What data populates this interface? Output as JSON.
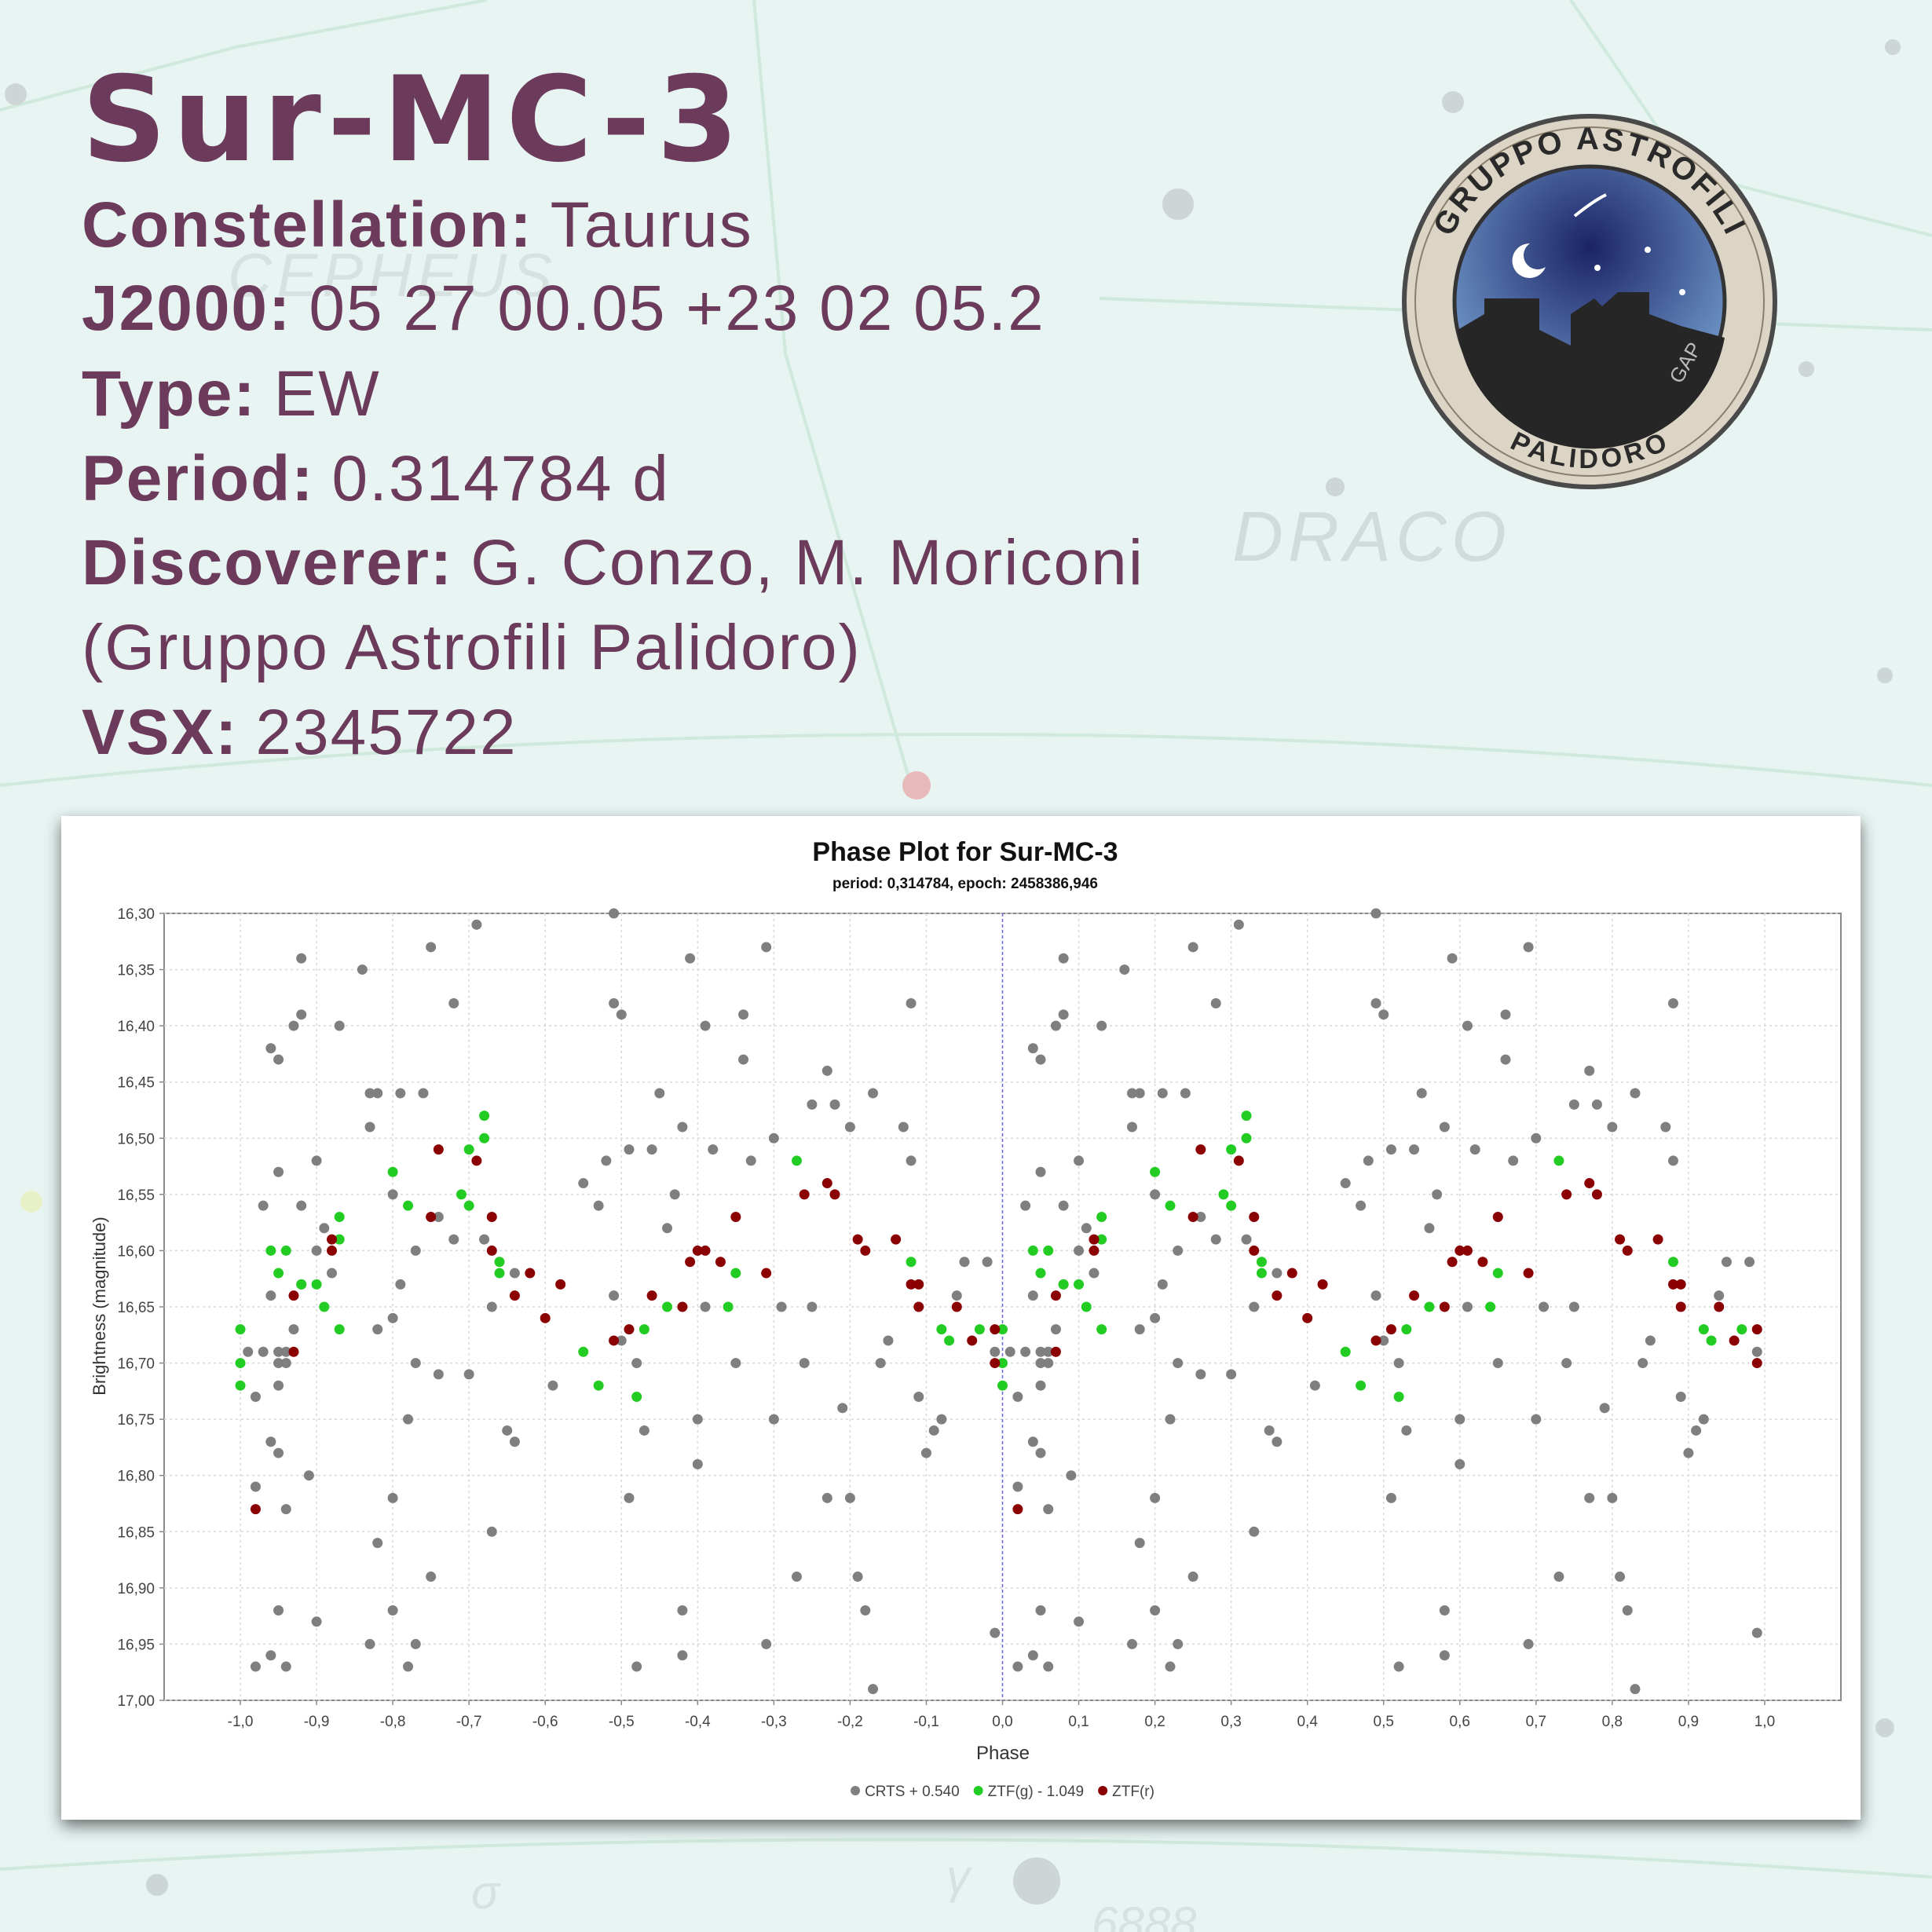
{
  "title": "Sur-MC-3",
  "info": [
    {
      "label": "Constellation:",
      "value": "Taurus"
    },
    {
      "label": "J2000:",
      "value": "05 27 00.05 +23 02 05.2"
    },
    {
      "label": "Type:",
      "value": "EW"
    },
    {
      "label": "Period:",
      "value": "0.314784 d"
    },
    {
      "label": "Discoverer:",
      "value": "G. Conzo, M. Moriconi",
      "continuation": "(Gruppo Astrofili Palidoro)"
    },
    {
      "label": "VSX:",
      "value": "2345722"
    }
  ],
  "logo": {
    "top": "GRUPPO ASTROFILI",
    "bottom": "PALIDORO",
    "monogram": "GAP"
  },
  "background_labels": [
    "CEPHEUS",
    "DRACO",
    "σ",
    "γ",
    "6888"
  ],
  "chart_data": {
    "type": "scatter",
    "title": "Phase Plot for Sur-MC-3",
    "subtitle": "period: 0,314784, epoch: 2458386,946",
    "x_label": "Phase",
    "y_label": "Brightness (magnitude)",
    "xlim": [
      -1.1,
      1.1
    ],
    "ylim": [
      16.3,
      17.0
    ],
    "y_inverted": true,
    "grid": true,
    "legend": "bottom",
    "xticks": [
      {
        "value": -1.0,
        "label": "-1,0"
      },
      {
        "value": -0.9,
        "label": "-0,9"
      },
      {
        "value": -0.8,
        "label": "-0,8"
      },
      {
        "value": -0.7,
        "label": "-0,7"
      },
      {
        "value": -0.6,
        "label": "-0,6"
      },
      {
        "value": -0.5,
        "label": "-0,5"
      },
      {
        "value": -0.4,
        "label": "-0,4"
      },
      {
        "value": -0.3,
        "label": "-0,3"
      },
      {
        "value": -0.2,
        "label": "-0,2"
      },
      {
        "value": -0.1,
        "label": "-0,1"
      },
      {
        "value": 0,
        "label": "0,0"
      },
      {
        "value": 0.1,
        "label": "0,1"
      },
      {
        "value": 0.2,
        "label": "0,2"
      },
      {
        "value": 0.3,
        "label": "0,3"
      },
      {
        "value": 0.4,
        "label": "0,4"
      },
      {
        "value": 0.5,
        "label": "0,5"
      },
      {
        "value": 0.6,
        "label": "0,6"
      },
      {
        "value": 0.7,
        "label": "0,7"
      },
      {
        "value": 0.8,
        "label": "0,8"
      },
      {
        "value": 0.9,
        "label": "0,9"
      },
      {
        "value": 1.0,
        "label": "1,0"
      }
    ],
    "yticks": [
      {
        "value": 16.3,
        "label": "16,30"
      },
      {
        "value": 16.35,
        "label": "16,35"
      },
      {
        "value": 16.4,
        "label": "16,40"
      },
      {
        "value": 16.45,
        "label": "16,45"
      },
      {
        "value": 16.5,
        "label": "16,50"
      },
      {
        "value": 16.55,
        "label": "16,55"
      },
      {
        "value": 16.6,
        "label": "16,60"
      },
      {
        "value": 16.65,
        "label": "16,65"
      },
      {
        "value": 16.7,
        "label": "16,70"
      },
      {
        "value": 16.75,
        "label": "16,75"
      },
      {
        "value": 16.8,
        "label": "16,80"
      },
      {
        "value": 16.85,
        "label": "16,85"
      },
      {
        "value": 16.9,
        "label": "16,90"
      },
      {
        "value": 16.95,
        "label": "16,95"
      },
      {
        "value": 17.0,
        "label": "17,00"
      }
    ],
    "series": [
      {
        "name": "CRTS + 0.540",
        "color": "#7f7f7f",
        "x": [
          -0.98,
          -0.98,
          -0.99,
          -0.97,
          -0.95,
          -0.94,
          -0.95,
          -0.94,
          -0.98,
          -0.97,
          -0.96,
          -0.96,
          -0.95,
          -0.95,
          -0.95,
          -0.96,
          -0.95,
          -0.94,
          -0.95,
          -0.96,
          -0.94,
          -0.92,
          -0.92,
          -0.93,
          -0.92,
          -0.93,
          -0.92,
          -0.91,
          -0.9,
          -0.9,
          -0.9,
          -0.89,
          -0.87,
          -0.88,
          -0.84,
          -0.83,
          -0.83,
          -0.83,
          -0.82,
          -0.82,
          -0.82,
          -0.8,
          -0.8,
          -0.79,
          -0.8,
          -0.79,
          -0.8,
          -0.78,
          -0.78,
          -0.77,
          -0.77,
          -0.77,
          -0.75,
          -0.76,
          -0.75,
          -0.74,
          -0.74,
          -0.72,
          -0.72,
          -0.7,
          -0.69,
          -0.68,
          -0.67,
          -0.67,
          -0.65,
          -0.64,
          -0.64,
          -0.59,
          -0.55,
          -0.53,
          -0.52,
          -0.51,
          -0.51,
          -0.5,
          -0.51,
          -0.5,
          -0.49,
          -0.48,
          -0.49,
          -0.48,
          -0.47,
          -0.45,
          -0.46,
          -0.44,
          -0.43,
          -0.42,
          -0.42,
          -0.42,
          -0.41,
          -0.4,
          -0.4,
          -0.39,
          -0.39,
          -0.38,
          -0.35,
          -0.34,
          -0.34,
          -0.33,
          -0.31,
          -0.31,
          -0.3,
          -0.3,
          -0.29,
          -0.27,
          -0.26,
          -0.25,
          -0.25,
          -0.23,
          -0.23,
          -0.22,
          -0.21,
          -0.2,
          -0.2,
          -0.19,
          -0.18,
          -0.17,
          -0.17,
          -0.16,
          -0.15,
          -0.13,
          -0.12,
          -0.12,
          -0.11,
          -0.1,
          -0.09,
          -0.08,
          -0.06,
          -0.05,
          -0.02,
          -0.01,
          -0.01,
          0.02,
          0.02,
          0.01,
          0.03,
          0.05,
          0.06,
          0.05,
          0.06,
          0.02,
          0.03,
          0.04,
          0.04,
          0.05,
          0.05,
          0.05,
          0.04,
          0.05,
          0.06,
          0.05,
          0.04,
          0.06,
          0.08,
          0.08,
          0.07,
          0.08,
          0.07,
          0.08,
          0.09,
          0.1,
          0.1,
          0.1,
          0.11,
          0.13,
          0.12,
          0.16,
          0.17,
          0.17,
          0.17,
          0.18,
          0.18,
          0.18,
          0.2,
          0.2,
          0.21,
          0.2,
          0.21,
          0.2,
          0.22,
          0.22,
          0.23,
          0.23,
          0.23,
          0.25,
          0.24,
          0.25,
          0.26,
          0.26,
          0.28,
          0.28,
          0.3,
          0.31,
          0.32,
          0.33,
          0.33,
          0.35,
          0.36,
          0.36,
          0.41,
          0.45,
          0.47,
          0.48,
          0.49,
          0.49,
          0.5,
          0.49,
          0.5,
          0.51,
          0.52,
          0.51,
          0.52,
          0.53,
          0.55,
          0.54,
          0.56,
          0.57,
          0.58,
          0.58,
          0.58,
          0.59,
          0.6,
          0.6,
          0.61,
          0.61,
          0.62,
          0.65,
          0.66,
          0.66,
          0.67,
          0.69,
          0.69,
          0.7,
          0.7,
          0.71,
          0.73,
          0.74,
          0.75,
          0.75,
          0.77,
          0.77,
          0.78,
          0.79,
          0.8,
          0.8,
          0.81,
          0.82,
          0.83,
          0.83,
          0.84,
          0.85,
          0.87,
          0.88,
          0.88,
          0.89,
          0.9,
          0.91,
          0.92,
          0.94,
          0.95,
          0.98,
          0.99,
          0.99
        ],
        "values": [
          16.81,
          16.97,
          16.69,
          16.69,
          16.69,
          16.69,
          16.7,
          16.7,
          16.73,
          16.56,
          16.64,
          16.42,
          16.43,
          16.53,
          16.72,
          16.77,
          16.78,
          16.83,
          16.92,
          16.96,
          16.97,
          16.34,
          16.39,
          16.4,
          16.56,
          16.67,
          16.63,
          16.8,
          16.93,
          16.52,
          16.6,
          16.58,
          16.4,
          16.62,
          16.35,
          16.95,
          16.49,
          16.46,
          16.46,
          16.67,
          16.86,
          16.82,
          16.92,
          16.46,
          16.55,
          16.63,
          16.66,
          16.97,
          16.75,
          16.95,
          16.7,
          16.6,
          16.33,
          16.46,
          16.89,
          16.71,
          16.57,
          16.38,
          16.59,
          16.71,
          16.31,
          16.59,
          16.65,
          16.85,
          16.76,
          16.77,
          16.62,
          16.72,
          16.54,
          16.56,
          16.52,
          16.3,
          16.38,
          16.39,
          16.64,
          16.68,
          16.82,
          16.97,
          16.51,
          16.7,
          16.76,
          16.46,
          16.51,
          16.58,
          16.55,
          16.49,
          16.92,
          16.96,
          16.34,
          16.75,
          16.79,
          16.65,
          16.4,
          16.51,
          16.7,
          16.39,
          16.43,
          16.52,
          16.33,
          16.95,
          16.75,
          16.5,
          16.65,
          16.89,
          16.7,
          16.47,
          16.65,
          16.82,
          16.44,
          16.47,
          16.74,
          16.82,
          16.49,
          16.89,
          16.92,
          16.99,
          16.46,
          16.7,
          16.68,
          16.49,
          16.52,
          16.38,
          16.73,
          16.78,
          16.76,
          16.75,
          16.64,
          16.61,
          16.61,
          16.94,
          16.69,
          16.81,
          16.97,
          16.69,
          16.69,
          16.69,
          16.69,
          16.7,
          16.7,
          16.73,
          16.56,
          16.64,
          16.42,
          16.43,
          16.53,
          16.72,
          16.77,
          16.78,
          16.83,
          16.92,
          16.96,
          16.97,
          16.34,
          16.39,
          16.4,
          16.56,
          16.67,
          16.63,
          16.8,
          16.93,
          16.52,
          16.6,
          16.58,
          16.4,
          16.62,
          16.35,
          16.95,
          16.49,
          16.46,
          16.46,
          16.67,
          16.86,
          16.82,
          16.92,
          16.46,
          16.55,
          16.63,
          16.66,
          16.97,
          16.75,
          16.95,
          16.7,
          16.6,
          16.33,
          16.46,
          16.89,
          16.71,
          16.57,
          16.38,
          16.59,
          16.71,
          16.31,
          16.59,
          16.65,
          16.85,
          16.76,
          16.77,
          16.62,
          16.72,
          16.54,
          16.56,
          16.52,
          16.3,
          16.38,
          16.39,
          16.64,
          16.68,
          16.82,
          16.97,
          16.51,
          16.7,
          16.76,
          16.46,
          16.51,
          16.58,
          16.55,
          16.49,
          16.92,
          16.96,
          16.34,
          16.75,
          16.79,
          16.65,
          16.4,
          16.51,
          16.7,
          16.39,
          16.43,
          16.52,
          16.33,
          16.95,
          16.75,
          16.5,
          16.65,
          16.89,
          16.7,
          16.47,
          16.65,
          16.82,
          16.44,
          16.47,
          16.74,
          16.82,
          16.49,
          16.89,
          16.92,
          16.99,
          16.46,
          16.7,
          16.68,
          16.49,
          16.52,
          16.38,
          16.73,
          16.78,
          16.76,
          16.75,
          16.64,
          16.61,
          16.61,
          16.94,
          16.69
        ]
      },
      {
        "name": "ZTF(g) - 1.049",
        "color": "#22cc22",
        "x": [
          -1.0,
          -1.0,
          -1.0,
          -0.96,
          -0.95,
          -0.94,
          -0.92,
          -0.9,
          -0.89,
          -0.87,
          -0.87,
          -0.87,
          -0.8,
          -0.78,
          -0.71,
          -0.7,
          -0.68,
          -0.68,
          -0.7,
          -0.66,
          -0.66,
          -0.55,
          -0.53,
          -0.48,
          -0.47,
          -0.44,
          -0.36,
          -0.35,
          -0.27,
          -0.12,
          -0.08,
          -0.07,
          -0.03,
          0.0,
          0.0,
          0.0,
          0.04,
          0.05,
          0.06,
          0.08,
          0.1,
          0.11,
          0.13,
          0.13,
          0.13,
          0.2,
          0.22,
          0.29,
          0.3,
          0.32,
          0.32,
          0.3,
          0.34,
          0.34,
          0.45,
          0.47,
          0.52,
          0.53,
          0.56,
          0.64,
          0.65,
          0.73,
          0.88,
          0.92,
          0.93,
          0.97
        ],
        "values": [
          16.67,
          16.72,
          16.7,
          16.6,
          16.62,
          16.6,
          16.63,
          16.63,
          16.65,
          16.57,
          16.59,
          16.67,
          16.53,
          16.56,
          16.55,
          16.51,
          16.48,
          16.5,
          16.56,
          16.61,
          16.62,
          16.69,
          16.72,
          16.73,
          16.67,
          16.65,
          16.65,
          16.62,
          16.52,
          16.61,
          16.67,
          16.68,
          16.67,
          16.67,
          16.72,
          16.7,
          16.6,
          16.62,
          16.6,
          16.63,
          16.63,
          16.65,
          16.57,
          16.59,
          16.67,
          16.53,
          16.56,
          16.55,
          16.51,
          16.48,
          16.5,
          16.56,
          16.61,
          16.62,
          16.69,
          16.72,
          16.73,
          16.67,
          16.65,
          16.65,
          16.62,
          16.52,
          16.61,
          16.67,
          16.68,
          16.67
        ]
      },
      {
        "name": "ZTF(r)",
        "color": "#8b0000",
        "x": [
          -0.98,
          -0.93,
          -0.93,
          -0.88,
          -0.88,
          -0.74,
          -0.75,
          -0.69,
          -0.67,
          -0.67,
          -0.64,
          -0.62,
          -0.6,
          -0.58,
          -0.51,
          -0.49,
          -0.46,
          -0.42,
          -0.41,
          -0.4,
          -0.39,
          -0.37,
          -0.35,
          -0.31,
          -0.26,
          -0.23,
          -0.22,
          -0.19,
          -0.18,
          -0.14,
          -0.12,
          -0.11,
          -0.11,
          -0.06,
          -0.04,
          -0.01,
          -0.01,
          0.02,
          0.07,
          0.07,
          0.12,
          0.12,
          0.26,
          0.25,
          0.31,
          0.33,
          0.33,
          0.36,
          0.38,
          0.4,
          0.42,
          0.49,
          0.51,
          0.54,
          0.58,
          0.59,
          0.6,
          0.61,
          0.63,
          0.65,
          0.69,
          0.74,
          0.77,
          0.78,
          0.81,
          0.82,
          0.86,
          0.88,
          0.89,
          0.89,
          0.94,
          0.96,
          0.99,
          0.99
        ],
        "values": [
          16.83,
          16.64,
          16.69,
          16.59,
          16.6,
          16.51,
          16.57,
          16.52,
          16.57,
          16.6,
          16.64,
          16.62,
          16.66,
          16.63,
          16.68,
          16.67,
          16.64,
          16.65,
          16.61,
          16.6,
          16.6,
          16.61,
          16.57,
          16.62,
          16.55,
          16.54,
          16.55,
          16.59,
          16.6,
          16.59,
          16.63,
          16.65,
          16.63,
          16.65,
          16.68,
          16.67,
          16.7,
          16.83,
          16.64,
          16.69,
          16.59,
          16.6,
          16.51,
          16.57,
          16.52,
          16.57,
          16.6,
          16.64,
          16.62,
          16.66,
          16.63,
          16.68,
          16.67,
          16.64,
          16.65,
          16.61,
          16.6,
          16.6,
          16.61,
          16.57,
          16.62,
          16.55,
          16.54,
          16.55,
          16.59,
          16.6,
          16.59,
          16.63,
          16.65,
          16.63,
          16.65,
          16.68,
          16.67,
          16.7
        ]
      }
    ]
  }
}
